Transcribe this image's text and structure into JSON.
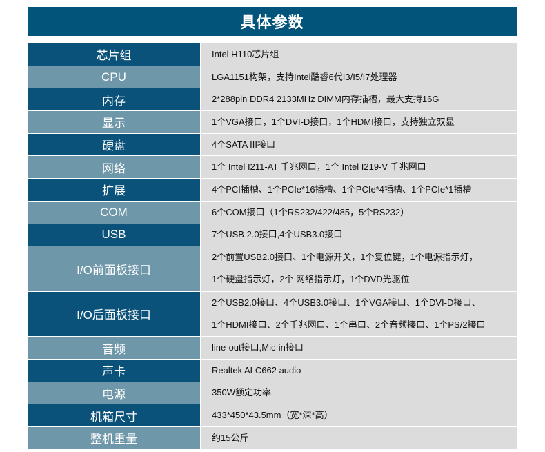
{
  "title": "具体参数",
  "colors": {
    "header": "#03547b",
    "label_dark": "#0b527b",
    "label_light": "#6e97aa",
    "value_bg": "#dcdcdc"
  },
  "rows": [
    {
      "label": "芯片组",
      "lines": [
        "Intel H110芯片组"
      ]
    },
    {
      "label": "CPU",
      "lines": [
        "LGA1151构架，支持Intel酷睿6代I3/I5/I7处理器"
      ]
    },
    {
      "label": "内存",
      "lines": [
        "2*288pin DDR4 2133MHz DIMM内存插槽，最大支持16G"
      ]
    },
    {
      "label": "显示",
      "lines": [
        "1个VGA接口，1个DVI-D接口，1个HDMI接口，支持独立双显"
      ]
    },
    {
      "label": "硬盘",
      "lines": [
        "4个SATA III接口"
      ]
    },
    {
      "label": "网络",
      "lines": [
        "1个 Intel I211-AT 千兆网口，1个 Intel I219-V 千兆网口"
      ]
    },
    {
      "label": "扩展",
      "lines": [
        "4个PCI插槽、1个PCIe*16插槽、1个PCIe*4插槽、1个PCIe*1插槽"
      ]
    },
    {
      "label": "COM",
      "lines": [
        "6个COM接口（1个RS232/422/485，5个RS232）"
      ]
    },
    {
      "label": "USB",
      "lines": [
        "7个USB 2.0接口,4个USB3.0接口"
      ]
    },
    {
      "label": "I/O前面板接口",
      "lines": [
        "2个前置USB2.0接口、1个电源开关，1个复位键，1个电源指示灯，",
        "1个硬盘指示灯，2个 网络指示灯，1个DVD光驱位"
      ]
    },
    {
      "label": "I/O后面板接口",
      "lines": [
        "2个USB2.0接口、4个USB3.0接口、1个VGA接口、1个DVI-D接口、",
        "1个HDMI接口、2个千兆网口、1个串口、2个音频接口、1个PS/2接口"
      ]
    },
    {
      "label": "音频",
      "lines": [
        "line-out接口,Mic-in接口"
      ]
    },
    {
      "label": "声卡",
      "lines": [
        "Realtek ALC662 audio"
      ]
    },
    {
      "label": "电源",
      "lines": [
        "350W额定功率"
      ]
    },
    {
      "label": "机箱尺寸",
      "lines": [
        "433*450*43.5mm（宽*深*高）"
      ]
    },
    {
      "label": "整机重量",
      "lines": [
        "约15公斤"
      ]
    }
  ]
}
